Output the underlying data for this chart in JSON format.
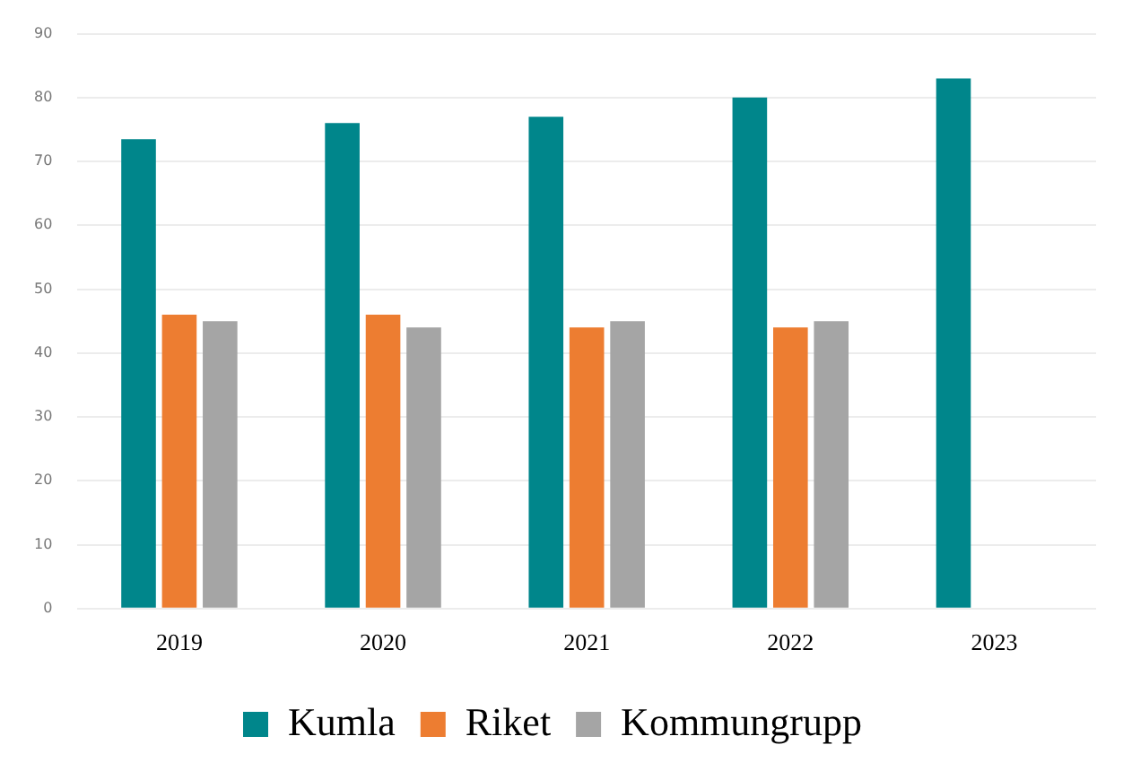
{
  "chart_data": {
    "type": "bar",
    "categories": [
      "2019",
      "2020",
      "2021",
      "2022",
      "2023"
    ],
    "series": [
      {
        "name": "Kumla",
        "color": "#00868b",
        "values": [
          73.5,
          76,
          77,
          80,
          83
        ]
      },
      {
        "name": "Riket",
        "color": "#ed7d31",
        "values": [
          46,
          46,
          44,
          44,
          null
        ]
      },
      {
        "name": "Kommungrupp",
        "color": "#a5a5a5",
        "values": [
          45,
          44,
          45,
          45,
          null
        ]
      }
    ],
    "ylim": [
      0,
      90
    ],
    "yticks": [
      0,
      10,
      20,
      30,
      40,
      50,
      60,
      70,
      80,
      90
    ],
    "grid": "y",
    "legend": "bottom"
  }
}
